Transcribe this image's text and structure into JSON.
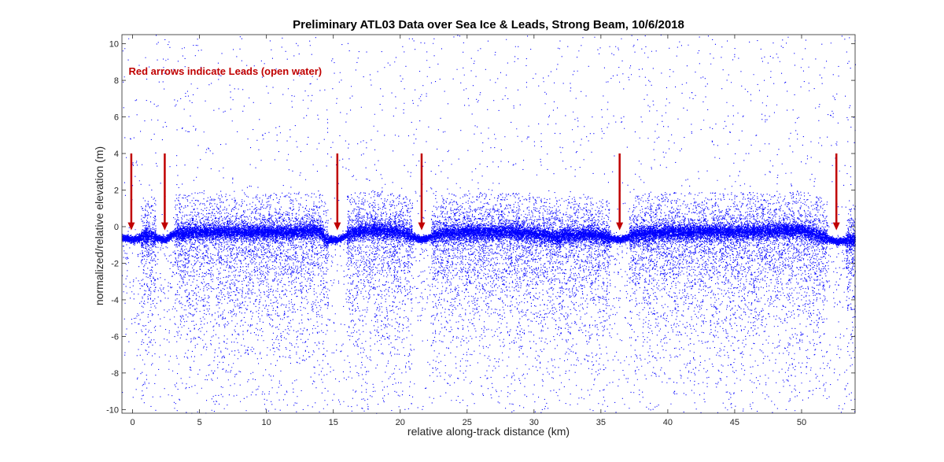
{
  "chart_data": {
    "type": "scatter",
    "title": "Preliminary ATL03 Data over Sea Ice & Leads, Strong Beam, 10/6/2018",
    "xlabel": "relative along-track distance (km)",
    "ylabel": "normalized/relative elevation (m)",
    "xlim": [
      -0.8,
      54
    ],
    "ylim": [
      -10.2,
      10.5
    ],
    "xticks": [
      0,
      5,
      10,
      15,
      20,
      25,
      30,
      35,
      40,
      45,
      50
    ],
    "yticks": [
      -10,
      -8,
      -6,
      -4,
      -2,
      0,
      2,
      4,
      6,
      8,
      10
    ],
    "grid": false,
    "series": [
      {
        "marker_color": "#0000ff",
        "surface_elevation_profile": {
          "x": [
            -0.8,
            0,
            1,
            2.4,
            3,
            5,
            8,
            10,
            12,
            14,
            14.3,
            15.3,
            16.5,
            18,
            20,
            21.5,
            23,
            25,
            28,
            30,
            31.8,
            32.2,
            34,
            36.3,
            38,
            40,
            43,
            46,
            50,
            52.6,
            54
          ],
          "y": [
            -0.6,
            -0.7,
            -0.5,
            -0.7,
            -0.4,
            -0.3,
            -0.3,
            -0.3,
            -0.3,
            -0.2,
            -0.7,
            -0.7,
            -0.3,
            -0.2,
            -0.3,
            -0.7,
            -0.4,
            -0.3,
            -0.3,
            -0.4,
            -0.6,
            -0.5,
            -0.4,
            -0.7,
            -0.4,
            -0.3,
            -0.3,
            -0.3,
            -0.2,
            -0.8,
            -0.7
          ]
        }
      }
    ],
    "arrows": [
      {
        "x": -0.1,
        "y_start": 4,
        "y_end": -0.2
      },
      {
        "x": 2.4,
        "y_start": 4,
        "y_end": -0.2
      },
      {
        "x": 15.3,
        "y_start": 4,
        "y_end": -0.2
      },
      {
        "x": 21.6,
        "y_start": 4,
        "y_end": -0.2
      },
      {
        "x": 36.4,
        "y_start": 4,
        "y_end": -0.2
      },
      {
        "x": 52.6,
        "y_start": 4,
        "y_end": -0.2
      }
    ],
    "annotation": {
      "text": "Red arrows indicate Leads (open water)",
      "x": -0.3,
      "y": 8.3,
      "color": "#c00000"
    },
    "arrow_color": "#c00000"
  }
}
